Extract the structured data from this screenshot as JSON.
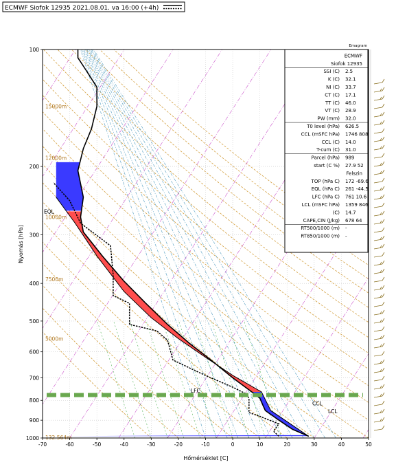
{
  "header": {
    "title": "ECMWF Siofok 12935 2021.08.01. va 16:00 (+4h)"
  },
  "corner_label": "Emagram",
  "chart_data": {
    "type": "line",
    "xlabel": "Hőmérséklet [C]",
    "ylabel": "Nyomás [hPa]",
    "xlim": [
      -70,
      50
    ],
    "ylim": [
      1000,
      100
    ],
    "y_scale": "log",
    "x_ticks": [
      -70,
      -60,
      -50,
      -40,
      -30,
      -20,
      -10,
      0,
      10,
      20,
      30,
      40,
      50
    ],
    "y_ticks": [
      100,
      200,
      300,
      400,
      500,
      600,
      700,
      800,
      900,
      1000
    ],
    "grid": true,
    "altitude_labels": [
      {
        "text": "15000m",
        "p": 140
      },
      {
        "text": "12000m",
        "p": 190
      },
      {
        "text": "10000m",
        "p": 270
      },
      {
        "text": "7500m",
        "p": 390
      },
      {
        "text": "5000m",
        "p": 555
      },
      {
        "text": "132.564m",
        "p": 995
      }
    ],
    "series": [
      {
        "type": "temperature",
        "points": [
          [
            28,
            990
          ],
          [
            22,
            950
          ],
          [
            17,
            900
          ],
          [
            12,
            850
          ],
          [
            11,
            820
          ],
          [
            10,
            790
          ],
          [
            8,
            770
          ],
          [
            0,
            700
          ],
          [
            -8,
            630
          ],
          [
            -16,
            570
          ],
          [
            -24,
            510
          ],
          [
            -32,
            450
          ],
          [
            -40,
            395
          ],
          [
            -48,
            340
          ],
          [
            -55,
            295
          ],
          [
            -56,
            270
          ],
          [
            -55,
            240
          ],
          [
            -57,
            205
          ],
          [
            -55,
            180
          ],
          [
            -52,
            160
          ],
          [
            -50,
            140
          ],
          [
            -50,
            125
          ],
          [
            -54,
            113
          ],
          [
            -57,
            105
          ],
          [
            -57,
            100
          ]
        ]
      },
      {
        "type": "dewpoint",
        "points": [
          [
            17,
            990
          ],
          [
            15,
            960
          ],
          [
            17,
            920
          ],
          [
            10,
            880
          ],
          [
            6,
            860
          ],
          [
            6,
            820
          ],
          [
            6,
            790
          ],
          [
            5,
            770
          ],
          [
            0,
            740
          ],
          [
            -8,
            700
          ],
          [
            -12,
            680
          ],
          [
            -22,
            630
          ],
          [
            -24,
            560
          ],
          [
            -28,
            530
          ],
          [
            -38,
            510
          ],
          [
            -38,
            450
          ],
          [
            -44,
            430
          ],
          [
            -44,
            380
          ],
          [
            -45,
            320
          ],
          [
            -56,
            280
          ],
          [
            -60,
            245
          ],
          [
            -66,
            220
          ]
        ]
      },
      {
        "type": "parcel",
        "points": [
          [
            27.9,
            989
          ],
          [
            14,
            850
          ],
          [
            10.6,
            761
          ],
          [
            0,
            690
          ],
          [
            -10,
            620
          ],
          [
            -20,
            555
          ],
          [
            -30,
            490
          ],
          [
            -40,
            420
          ],
          [
            -50,
            340
          ],
          [
            -58,
            280
          ],
          [
            -65,
            240
          ]
        ]
      }
    ],
    "lcl_line_p": 775,
    "cape_area": {
      "from_p": 761,
      "to_p": 261
    },
    "cin_area": {
      "from_p": 989,
      "to_p": 761
    },
    "annotations": [
      {
        "text": "EQL",
        "p": 261
      },
      {
        "text": "LFC",
        "p": 761
      },
      {
        "text": "CCL",
        "p": 808
      },
      {
        "text": "LCL",
        "p": 846
      }
    ],
    "indices": [
      {
        "label": "",
        "value": "ECMWF"
      },
      {
        "label": "",
        "value": "Siofok 12935"
      },
      {
        "label": "SSI (C)",
        "value": "2.5"
      },
      {
        "label": "K (C)",
        "value": "32.1"
      },
      {
        "label": "NI (C)",
        "value": "33.7"
      },
      {
        "label": "CT (C)",
        "value": "17.1"
      },
      {
        "label": "TT (C)",
        "value": "46.0"
      },
      {
        "label": "VT (C)",
        "value": "28.9"
      },
      {
        "label": "PW (mm)",
        "value": "32.0"
      },
      {
        "label": "T0 level (hPa)",
        "value": "626.5"
      },
      {
        "label": "CCL (mSFC hPa)",
        "value": "1746 808"
      },
      {
        "label": "CCL (C)",
        "value": "14.0"
      },
      {
        "label": "T-cum (C)",
        "value": "31.0"
      },
      {
        "label": "Parcel (hPa)",
        "value": "989"
      },
      {
        "label": "start (C %)",
        "value": "27.9 52"
      },
      {
        "label": "",
        "value": "Felszin"
      },
      {
        "label": "TOP (hPa C)",
        "value": "172 -69.6"
      },
      {
        "label": "EQL (hPa C)",
        "value": "261 -44.5"
      },
      {
        "label": "LFC (hPa C)",
        "value": "761 10.6"
      },
      {
        "label": "LCL (mSFC hPa)",
        "value": "1359 846"
      },
      {
        "label": "(C)",
        "value": "14.7"
      },
      {
        "label": "CAPE,CIN (J/kg)",
        "value": "678 64"
      },
      {
        "label": "RT500/1000 (m)",
        "value": "-"
      },
      {
        "label": "RT850/1000 (m)",
        "value": "-"
      }
    ],
    "colors": {
      "temperature": "#000000",
      "dewpoint": "#000000",
      "cape": "#ff4d4d",
      "cin": "#3a3aff",
      "lcl_line": "#6aa84f",
      "dry_adiabat": "#d4a040",
      "moist_adiabat": "#66a8c8",
      "mixing_ratio": "#4caf50",
      "isotherm": "#cc55cc",
      "altitude_label": "#b07820"
    }
  }
}
